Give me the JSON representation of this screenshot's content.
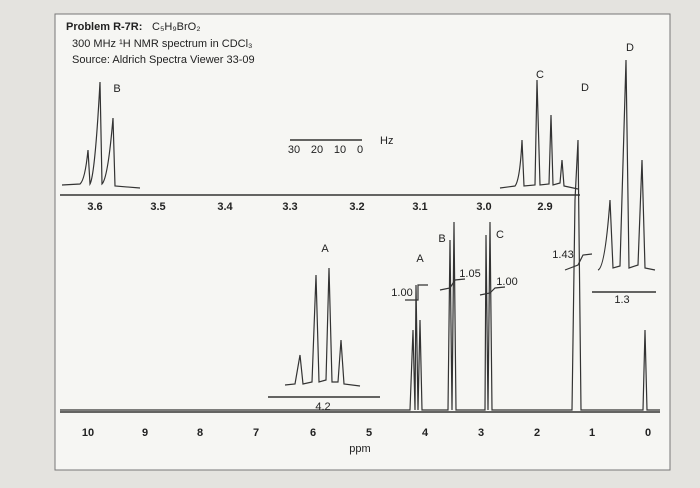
{
  "header": {
    "problem": "Problem R-7R:",
    "formula": "C₅H₉BrO₂",
    "conditions": "300 MHz ¹H NMR spectrum in CDCl₃",
    "source": "Source: Aldrich Spectra Viewer 33-09"
  },
  "main_axis": {
    "ticks": [
      "10",
      "9",
      "8",
      "7",
      "6",
      "5",
      "4",
      "3",
      "2",
      "1",
      "0"
    ],
    "label": "ppm"
  },
  "upper_inset_axis": {
    "ticks": [
      "3.6",
      "3.5",
      "3.4",
      "3.3",
      "3.2",
      "3.1",
      "3.0",
      "2.9"
    ]
  },
  "hz_scale": {
    "ticks": [
      "30",
      "20",
      "10",
      "0"
    ],
    "unit": "Hz"
  },
  "inset_a_axis": "4.2",
  "inset_d_axis": "1.3",
  "peak_labels": [
    {
      "label": "B"
    },
    {
      "label": "C"
    },
    {
      "label": "D"
    },
    {
      "label": "D"
    },
    {
      "label": "A"
    },
    {
      "label": "A"
    },
    {
      "label": "B"
    },
    {
      "label": "C"
    }
  ],
  "integrations": [
    "1.00",
    "1.05",
    "1.00",
    "1.43"
  ]
}
